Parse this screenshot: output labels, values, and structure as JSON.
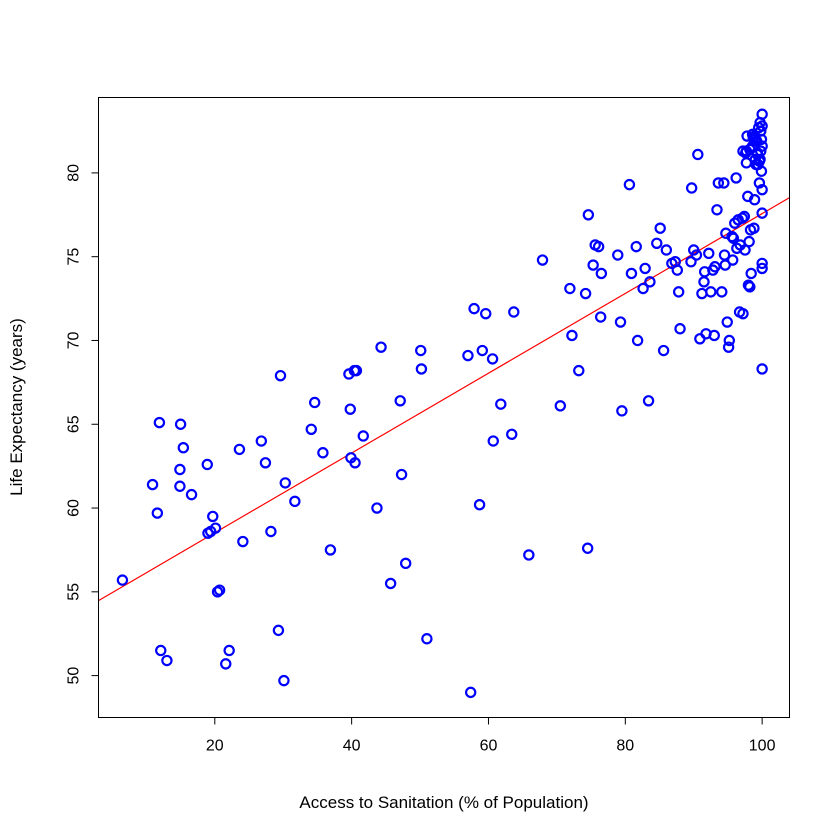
{
  "chart_data": {
    "type": "scatter",
    "title": "",
    "xlabel": "Access to Sanitation (% of Population)",
    "ylabel": "Life Expectancy (years)",
    "xlim": [
      3,
      104
    ],
    "ylim": [
      47.5,
      84.5
    ],
    "xticks": [
      20,
      40,
      60,
      80,
      100
    ],
    "yticks": [
      50,
      55,
      60,
      65,
      70,
      75,
      80
    ],
    "grid": false,
    "legend": "none",
    "point_color": "#0000ff",
    "line_color": "#ff0000",
    "trendline": {
      "intercept": 53.76,
      "slope": 0.2381
    },
    "x": [
      6.5,
      10.9,
      11.6,
      11.9,
      12.1,
      13.0,
      14.9,
      14.9,
      15.0,
      15.4,
      16.6,
      18.9,
      19.0,
      19.4,
      19.7,
      20.1,
      20.4,
      20.7,
      21.6,
      22.1,
      23.6,
      24.1,
      26.8,
      27.4,
      28.2,
      29.3,
      29.6,
      30.1,
      30.3,
      31.7,
      34.1,
      34.6,
      35.8,
      36.9,
      39.6,
      39.8,
      39.9,
      40.4,
      40.5,
      40.7,
      41.7,
      43.7,
      44.3,
      45.7,
      47.1,
      47.3,
      47.9,
      50.1,
      50.2,
      51.0,
      57.0,
      57.4,
      57.9,
      58.7,
      59.1,
      59.6,
      60.6,
      60.7,
      61.8,
      63.4,
      63.7,
      65.9,
      67.9,
      70.5,
      71.9,
      72.2,
      73.2,
      74.2,
      74.5,
      74.6,
      75.3,
      75.6,
      76.1,
      76.4,
      76.5,
      78.9,
      79.3,
      79.5,
      80.6,
      80.9,
      81.6,
      81.8,
      82.6,
      82.9,
      83.4,
      83.6,
      84.6,
      85.1,
      85.6,
      86.0,
      86.8,
      87.3,
      87.6,
      87.8,
      88.0,
      89.6,
      89.7,
      90.0,
      90.4,
      90.6,
      90.9,
      91.2,
      91.5,
      91.6,
      91.8,
      92.2,
      92.5,
      92.8,
      93.0,
      93.1,
      93.4,
      93.6,
      94.1,
      94.4,
      94.5,
      94.6,
      94.7,
      94.9,
      95.1,
      95.2,
      95.6,
      95.7,
      95.8,
      96.0,
      96.2,
      96.3,
      96.5,
      96.7,
      96.8,
      97.1,
      97.2,
      97.4,
      97.5,
      97.6,
      97.7,
      97.8,
      97.9,
      98.0,
      98.1,
      98.2,
      98.3,
      98.4,
      98.5,
      98.6,
      98.7,
      98.8,
      98.9,
      99.0,
      99.1,
      99.2,
      99.3,
      99.4,
      99.5,
      99.6,
      99.7,
      99.8,
      99.8,
      99.9,
      99.9,
      100.0,
      100.0,
      100.0,
      100.0,
      100.0,
      100.0,
      100.0,
      100.0,
      99.7,
      99.6,
      99.3,
      99.0,
      98.9,
      98.6,
      98.2,
      97.7,
      97.2
    ],
    "y": [
      55.7,
      61.4,
      59.7,
      65.1,
      51.5,
      50.9,
      62.3,
      61.3,
      65.0,
      63.6,
      60.8,
      62.6,
      58.5,
      58.6,
      59.5,
      58.8,
      55.0,
      55.1,
      50.7,
      51.5,
      63.5,
      58.0,
      64.0,
      62.7,
      58.6,
      52.7,
      67.9,
      49.7,
      61.5,
      60.4,
      64.7,
      66.3,
      63.3,
      57.5,
      68.0,
      65.9,
      63.0,
      68.2,
      62.7,
      68.2,
      64.3,
      60.0,
      69.6,
      55.5,
      66.4,
      62.0,
      56.7,
      69.4,
      68.3,
      52.2,
      69.1,
      49.0,
      71.9,
      60.2,
      69.4,
      71.6,
      68.9,
      64.0,
      66.2,
      64.4,
      71.7,
      57.2,
      74.8,
      66.1,
      73.1,
      70.3,
      68.2,
      72.8,
      57.6,
      77.5,
      74.5,
      75.7,
      75.6,
      71.4,
      74.0,
      75.1,
      71.1,
      65.8,
      79.3,
      74.0,
      75.6,
      70.0,
      73.1,
      74.3,
      66.4,
      73.5,
      75.8,
      76.7,
      69.4,
      75.4,
      74.6,
      74.7,
      74.2,
      72.9,
      70.7,
      74.7,
      79.1,
      75.4,
      75.1,
      81.1,
      70.1,
      72.8,
      73.5,
      74.1,
      70.4,
      75.2,
      72.9,
      74.2,
      70.3,
      74.4,
      77.8,
      79.4,
      72.9,
      79.4,
      75.1,
      74.5,
      76.4,
      71.1,
      69.6,
      70.0,
      76.2,
      74.8,
      76.1,
      77.0,
      79.7,
      75.5,
      77.2,
      71.7,
      75.7,
      77.3,
      71.6,
      77.4,
      75.4,
      81.2,
      81.3,
      82.2,
      78.6,
      73.3,
      75.9,
      73.2,
      76.6,
      74.0,
      81.5,
      82.3,
      82.1,
      76.7,
      78.4,
      80.8,
      80.5,
      81.9,
      81.1,
      80.5,
      82.7,
      79.4,
      83.0,
      82.5,
      81.3,
      82.0,
      80.1,
      83.5,
      82.8,
      81.6,
      74.3,
      74.6,
      77.6,
      79.0,
      68.3,
      80.8,
      80.7,
      81.2,
      82.0,
      82.2,
      81.6,
      81.4,
      80.6,
      81.3
    ]
  }
}
